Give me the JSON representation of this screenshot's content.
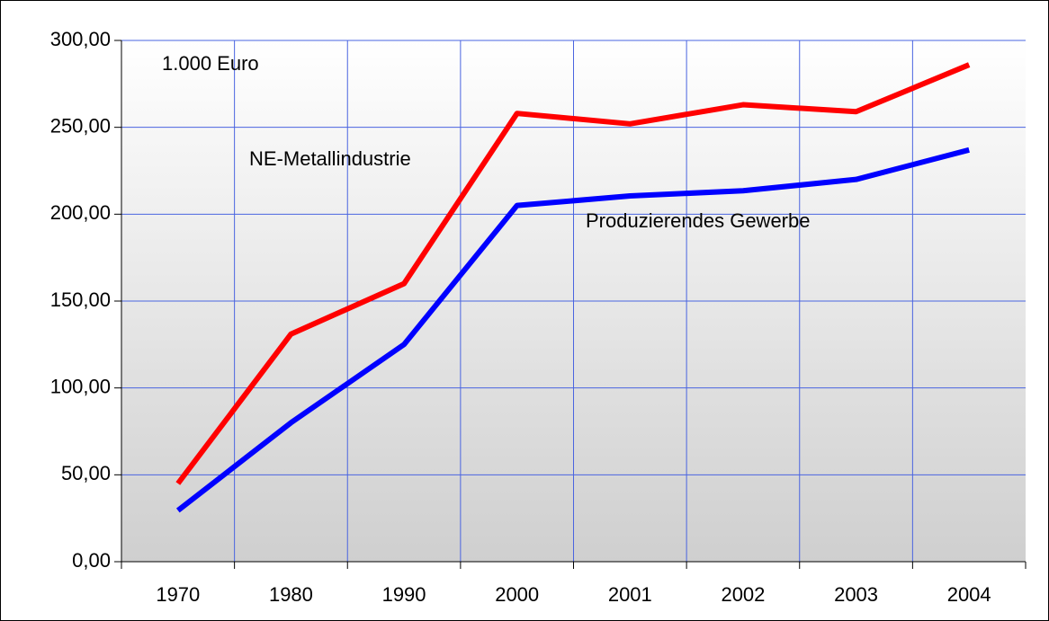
{
  "chart_data": {
    "type": "line",
    "annotation": "1.000 Euro",
    "categories": [
      "1970",
      "1980",
      "1990",
      "2000",
      "2001",
      "2002",
      "2003",
      "2004"
    ],
    "series": [
      {
        "name": "NE-Metallindustrie",
        "color": "#ff0000",
        "values": [
          45,
          131,
          160,
          258,
          252,
          263,
          259,
          286
        ]
      },
      {
        "name": "Produzierendes Gewerbe",
        "color": "#0000ff",
        "values": [
          29.5,
          80,
          125,
          205,
          210.5,
          213.5,
          220,
          237
        ]
      }
    ],
    "ylim": [
      0,
      300
    ],
    "yticks": [
      {
        "value": 0,
        "label": "0,00"
      },
      {
        "value": 50,
        "label": "50,00"
      },
      {
        "value": 100,
        "label": "100,00"
      },
      {
        "value": 150,
        "label": "150,00"
      },
      {
        "value": 200,
        "label": "200,00"
      },
      {
        "value": 250,
        "label": "250,00"
      },
      {
        "value": 300,
        "label": "300,00"
      }
    ],
    "grid": true
  }
}
